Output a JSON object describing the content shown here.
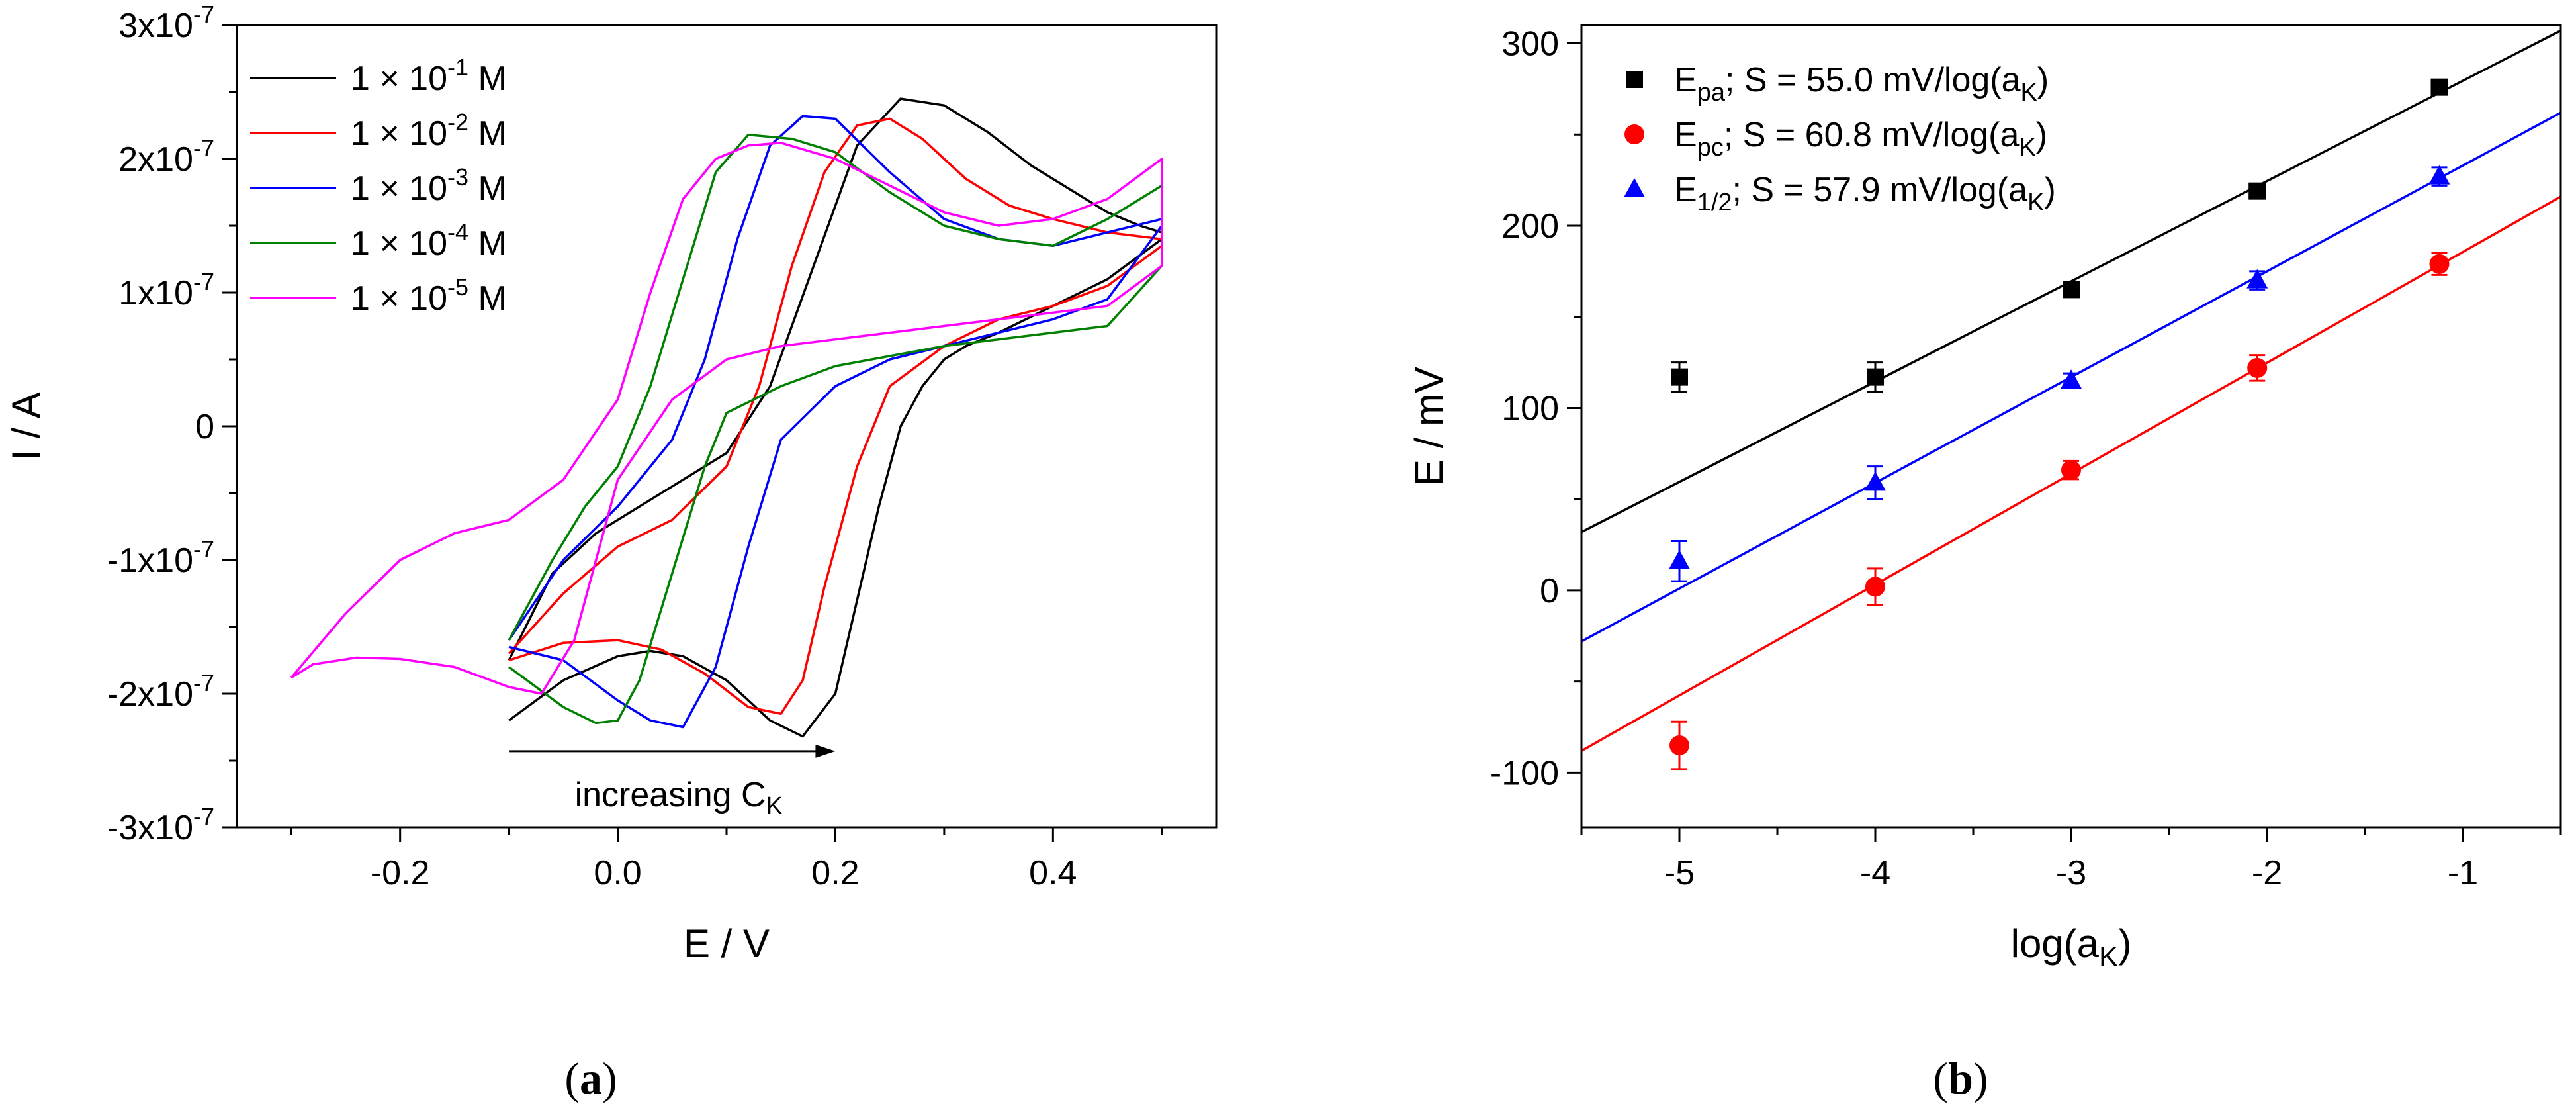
{
  "chart_data": [
    {
      "panel": "a",
      "type": "line",
      "title": "",
      "xlabel": "E / V",
      "ylabel": "I / A",
      "xlim": [
        -0.35,
        0.55
      ],
      "ylim": [
        -3e-07,
        3e-07
      ],
      "x_ticks": [
        {
          "value": -0.2,
          "label": "-0.2"
        },
        {
          "value": 0.0,
          "label": "0.0"
        },
        {
          "value": 0.2,
          "label": "0.2"
        },
        {
          "value": 0.4,
          "label": "0.4"
        }
      ],
      "y_ticks": [
        {
          "value": 3e-07,
          "mant": "3x10",
          "exp": "-7"
        },
        {
          "value": 2e-07,
          "mant": "2x10",
          "exp": "-7"
        },
        {
          "value": 1e-07,
          "mant": "1x10",
          "exp": "-7"
        },
        {
          "value": 0,
          "mant": "0",
          "exp": ""
        },
        {
          "value": -1e-07,
          "mant": "-1x10",
          "exp": "-7"
        },
        {
          "value": -2e-07,
          "mant": "-2x10",
          "exp": "-7"
        },
        {
          "value": -3e-07,
          "mant": "-3x10",
          "exp": "-7"
        }
      ],
      "annotation": {
        "text": "increasing C",
        "sub": "K",
        "x_from": -0.1,
        "x_to": 0.2,
        "y": -2.43e-07
      },
      "legend_position": "top-left",
      "series": [
        {
          "name": "1 × 10-1 M",
          "label_main": "1 × 10",
          "label_exp": "-1",
          "label_unit": " M",
          "color": "#000000",
          "x": [
            -0.1,
            -0.05,
            0.0,
            0.03,
            0.06,
            0.1,
            0.14,
            0.17,
            0.2,
            0.22,
            0.24,
            0.26,
            0.28,
            0.3,
            0.32,
            0.35,
            0.4,
            0.45,
            0.5,
            0.5,
            0.48,
            0.45,
            0.42,
            0.38,
            0.34,
            0.3,
            0.26,
            0.22,
            0.18,
            0.14,
            0.1,
            0.06,
            0.02,
            -0.02,
            -0.06,
            -0.1
          ],
          "y": [
            -2.2e-07,
            -1.9e-07,
            -1.72e-07,
            -1.68e-07,
            -1.72e-07,
            -1.9e-07,
            -2.2e-07,
            -2.32e-07,
            -2e-07,
            -1.3e-07,
            -6e-08,
            0.0,
            3e-08,
            5e-08,
            6e-08,
            7e-08,
            9e-08,
            1.1e-07,
            1.4e-07,
            1.45e-07,
            1.5e-07,
            1.6e-07,
            1.75e-07,
            1.95e-07,
            2.2e-07,
            2.4e-07,
            2.45e-07,
            2.1e-07,
            1.2e-07,
            3e-08,
            -2e-08,
            -4e-08,
            -6e-08,
            -8e-08,
            -1.1e-07,
            -1.75e-07
          ]
        },
        {
          "name": "1 × 10-2 M",
          "label_main": "1 × 10",
          "label_exp": "-2",
          "label_unit": " M",
          "color": "#ff0000",
          "x": [
            -0.1,
            -0.05,
            0.0,
            0.04,
            0.08,
            0.12,
            0.15,
            0.17,
            0.19,
            0.22,
            0.25,
            0.3,
            0.35,
            0.4,
            0.45,
            0.5,
            0.5,
            0.45,
            0.4,
            0.36,
            0.32,
            0.28,
            0.25,
            0.22,
            0.19,
            0.16,
            0.13,
            0.1,
            0.05,
            0.0,
            -0.05,
            -0.1
          ],
          "y": [
            -1.75e-07,
            -1.62e-07,
            -1.6e-07,
            -1.67e-07,
            -1.85e-07,
            -2.1e-07,
            -2.15e-07,
            -1.9e-07,
            -1.2e-07,
            -3e-08,
            3e-08,
            6e-08,
            8e-08,
            9e-08,
            1.05e-07,
            1.35e-07,
            1.4e-07,
            1.45e-07,
            1.55e-07,
            1.65e-07,
            1.85e-07,
            2.15e-07,
            2.3e-07,
            2.25e-07,
            1.9e-07,
            1.2e-07,
            3e-08,
            -3e-08,
            -7e-08,
            -9e-08,
            -1.25e-07,
            -1.7e-07
          ]
        },
        {
          "name": "1 × 10-3 M",
          "label_main": "1 × 10",
          "label_exp": "-3",
          "label_unit": " M",
          "color": "#0000ff",
          "x": [
            -0.1,
            -0.05,
            0.0,
            0.03,
            0.06,
            0.09,
            0.12,
            0.15,
            0.2,
            0.25,
            0.3,
            0.35,
            0.4,
            0.45,
            0.5,
            0.5,
            0.45,
            0.4,
            0.35,
            0.3,
            0.25,
            0.2,
            0.17,
            0.14,
            0.11,
            0.08,
            0.05,
            0.0,
            -0.05,
            -0.1
          ],
          "y": [
            -1.65e-07,
            -1.75e-07,
            -2.05e-07,
            -2.2e-07,
            -2.25e-07,
            -1.8e-07,
            -9e-08,
            -1e-08,
            3e-08,
            5e-08,
            6e-08,
            7e-08,
            8e-08,
            9.5e-08,
            1.5e-07,
            1.55e-07,
            1.45e-07,
            1.35e-07,
            1.4e-07,
            1.55e-07,
            1.9e-07,
            2.3e-07,
            2.32e-07,
            2.1e-07,
            1.4e-07,
            5e-08,
            -1e-08,
            -6e-08,
            -1e-07,
            -1.6e-07
          ]
        },
        {
          "name": "1 × 10-4 M",
          "label_main": "1 × 10",
          "label_exp": "-4",
          "label_unit": " M",
          "color": "#008000",
          "x": [
            -0.1,
            -0.05,
            -0.02,
            0.0,
            0.02,
            0.05,
            0.08,
            0.1,
            0.15,
            0.2,
            0.3,
            0.4,
            0.45,
            0.5,
            0.5,
            0.45,
            0.4,
            0.35,
            0.3,
            0.25,
            0.2,
            0.16,
            0.12,
            0.09,
            0.06,
            0.03,
            0.0,
            -0.03,
            -0.06,
            -0.1
          ],
          "y": [
            -1.8e-07,
            -2.1e-07,
            -2.22e-07,
            -2.2e-07,
            -1.9e-07,
            -1.1e-07,
            -3e-08,
            1e-08,
            3e-08,
            4.5e-08,
            6e-08,
            7e-08,
            7.5e-08,
            1.2e-07,
            1.8e-07,
            1.55e-07,
            1.35e-07,
            1.4e-07,
            1.5e-07,
            1.75e-07,
            2.05e-07,
            2.15e-07,
            2.18e-07,
            1.9e-07,
            1.1e-07,
            3e-08,
            -3e-08,
            -6e-08,
            -1e-07,
            -1.6e-07
          ]
        },
        {
          "name": "1 × 10-5 M",
          "label_main": "1 × 10",
          "label_exp": "-5",
          "label_unit": " M",
          "color": "#ff00ff",
          "x": [
            -0.3,
            -0.28,
            -0.24,
            -0.2,
            -0.15,
            -0.1,
            -0.07,
            -0.04,
            0.0,
            0.05,
            0.1,
            0.15,
            0.2,
            0.25,
            0.3,
            0.35,
            0.4,
            0.45,
            0.5,
            0.5,
            0.45,
            0.4,
            0.35,
            0.3,
            0.25,
            0.2,
            0.15,
            0.12,
            0.09,
            0.06,
            0.03,
            0.0,
            -0.05,
            -0.1,
            -0.15,
            -0.2,
            -0.25,
            -0.3
          ],
          "y": [
            -1.88e-07,
            -1.78e-07,
            -1.73e-07,
            -1.74e-07,
            -1.8e-07,
            -1.95e-07,
            -2e-07,
            -1.6e-07,
            -4e-08,
            2e-08,
            5e-08,
            6e-08,
            6.5e-08,
            7e-08,
            7.5e-08,
            8e-08,
            8.5e-08,
            9e-08,
            1.2e-07,
            2e-07,
            1.7e-07,
            1.55e-07,
            1.5e-07,
            1.6e-07,
            1.8e-07,
            2e-07,
            2.12e-07,
            2.1e-07,
            2e-07,
            1.7e-07,
            1e-07,
            2e-08,
            -4e-08,
            -7e-08,
            -8e-08,
            -1e-07,
            -1.4e-07,
            -1.88e-07
          ]
        }
      ]
    },
    {
      "panel": "b",
      "type": "scatter",
      "title": "",
      "xlabel_main": "log(a",
      "xlabel_sub": "K",
      "xlabel_end": ")",
      "ylabel": "E / mV",
      "xlim": [
        -5.5,
        -0.5
      ],
      "ylim": [
        -130,
        310
      ],
      "x_ticks": [
        -5,
        -4,
        -3,
        -2,
        -1
      ],
      "y_ticks": [
        -100,
        0,
        100,
        200,
        300
      ],
      "legend_position": "top-left",
      "series": [
        {
          "name": "Epa",
          "label_main": "E",
          "label_sub": "pa",
          "label_rest": "; S = 55.0 mV/log(a",
          "label_sub2": "K",
          "label_end": ")",
          "marker": "square",
          "color": "#000000",
          "x": [
            -5.0,
            -4.0,
            -3.0,
            -2.05,
            -1.12
          ],
          "y": [
            117,
            117,
            165,
            219,
            276
          ],
          "err": [
            8,
            8,
            3,
            3,
            3
          ],
          "fit": {
            "x": [
              -5.5,
              -0.5
            ],
            "y": [
              32,
              307
            ]
          }
        },
        {
          "name": "Epc",
          "label_main": "E",
          "label_sub": "pc",
          "label_rest": "; S = 60.8 mV/log(a",
          "label_sub2": "K",
          "label_end": ")",
          "marker": "circle",
          "color": "#ff0000",
          "x": [
            -5.0,
            -4.0,
            -3.0,
            -2.05,
            -1.12
          ],
          "y": [
            -85,
            2,
            66,
            122,
            179
          ],
          "err": [
            13,
            10,
            5,
            7,
            6
          ],
          "fit": {
            "x": [
              -5.5,
              -0.5
            ],
            "y": [
              -88,
              216
            ]
          }
        },
        {
          "name": "E1/2",
          "label_main": "E",
          "label_sub": "1/2",
          "label_rest": "; S = 57.9 mV/log(a",
          "label_sub2": "K",
          "label_end": ")",
          "marker": "triangle",
          "color": "#0000ff",
          "x": [
            -5.0,
            -4.0,
            -3.0,
            -2.05,
            -1.12
          ],
          "y": [
            16,
            59,
            115,
            170,
            227
          ],
          "err": [
            11,
            9,
            4,
            5,
            5
          ],
          "fit": {
            "x": [
              -5.5,
              -0.5
            ],
            "y": [
              -28,
              262
            ]
          }
        }
      ]
    }
  ],
  "captions": {
    "a": "a",
    "b": "b",
    "open": "(",
    "close": ")"
  }
}
